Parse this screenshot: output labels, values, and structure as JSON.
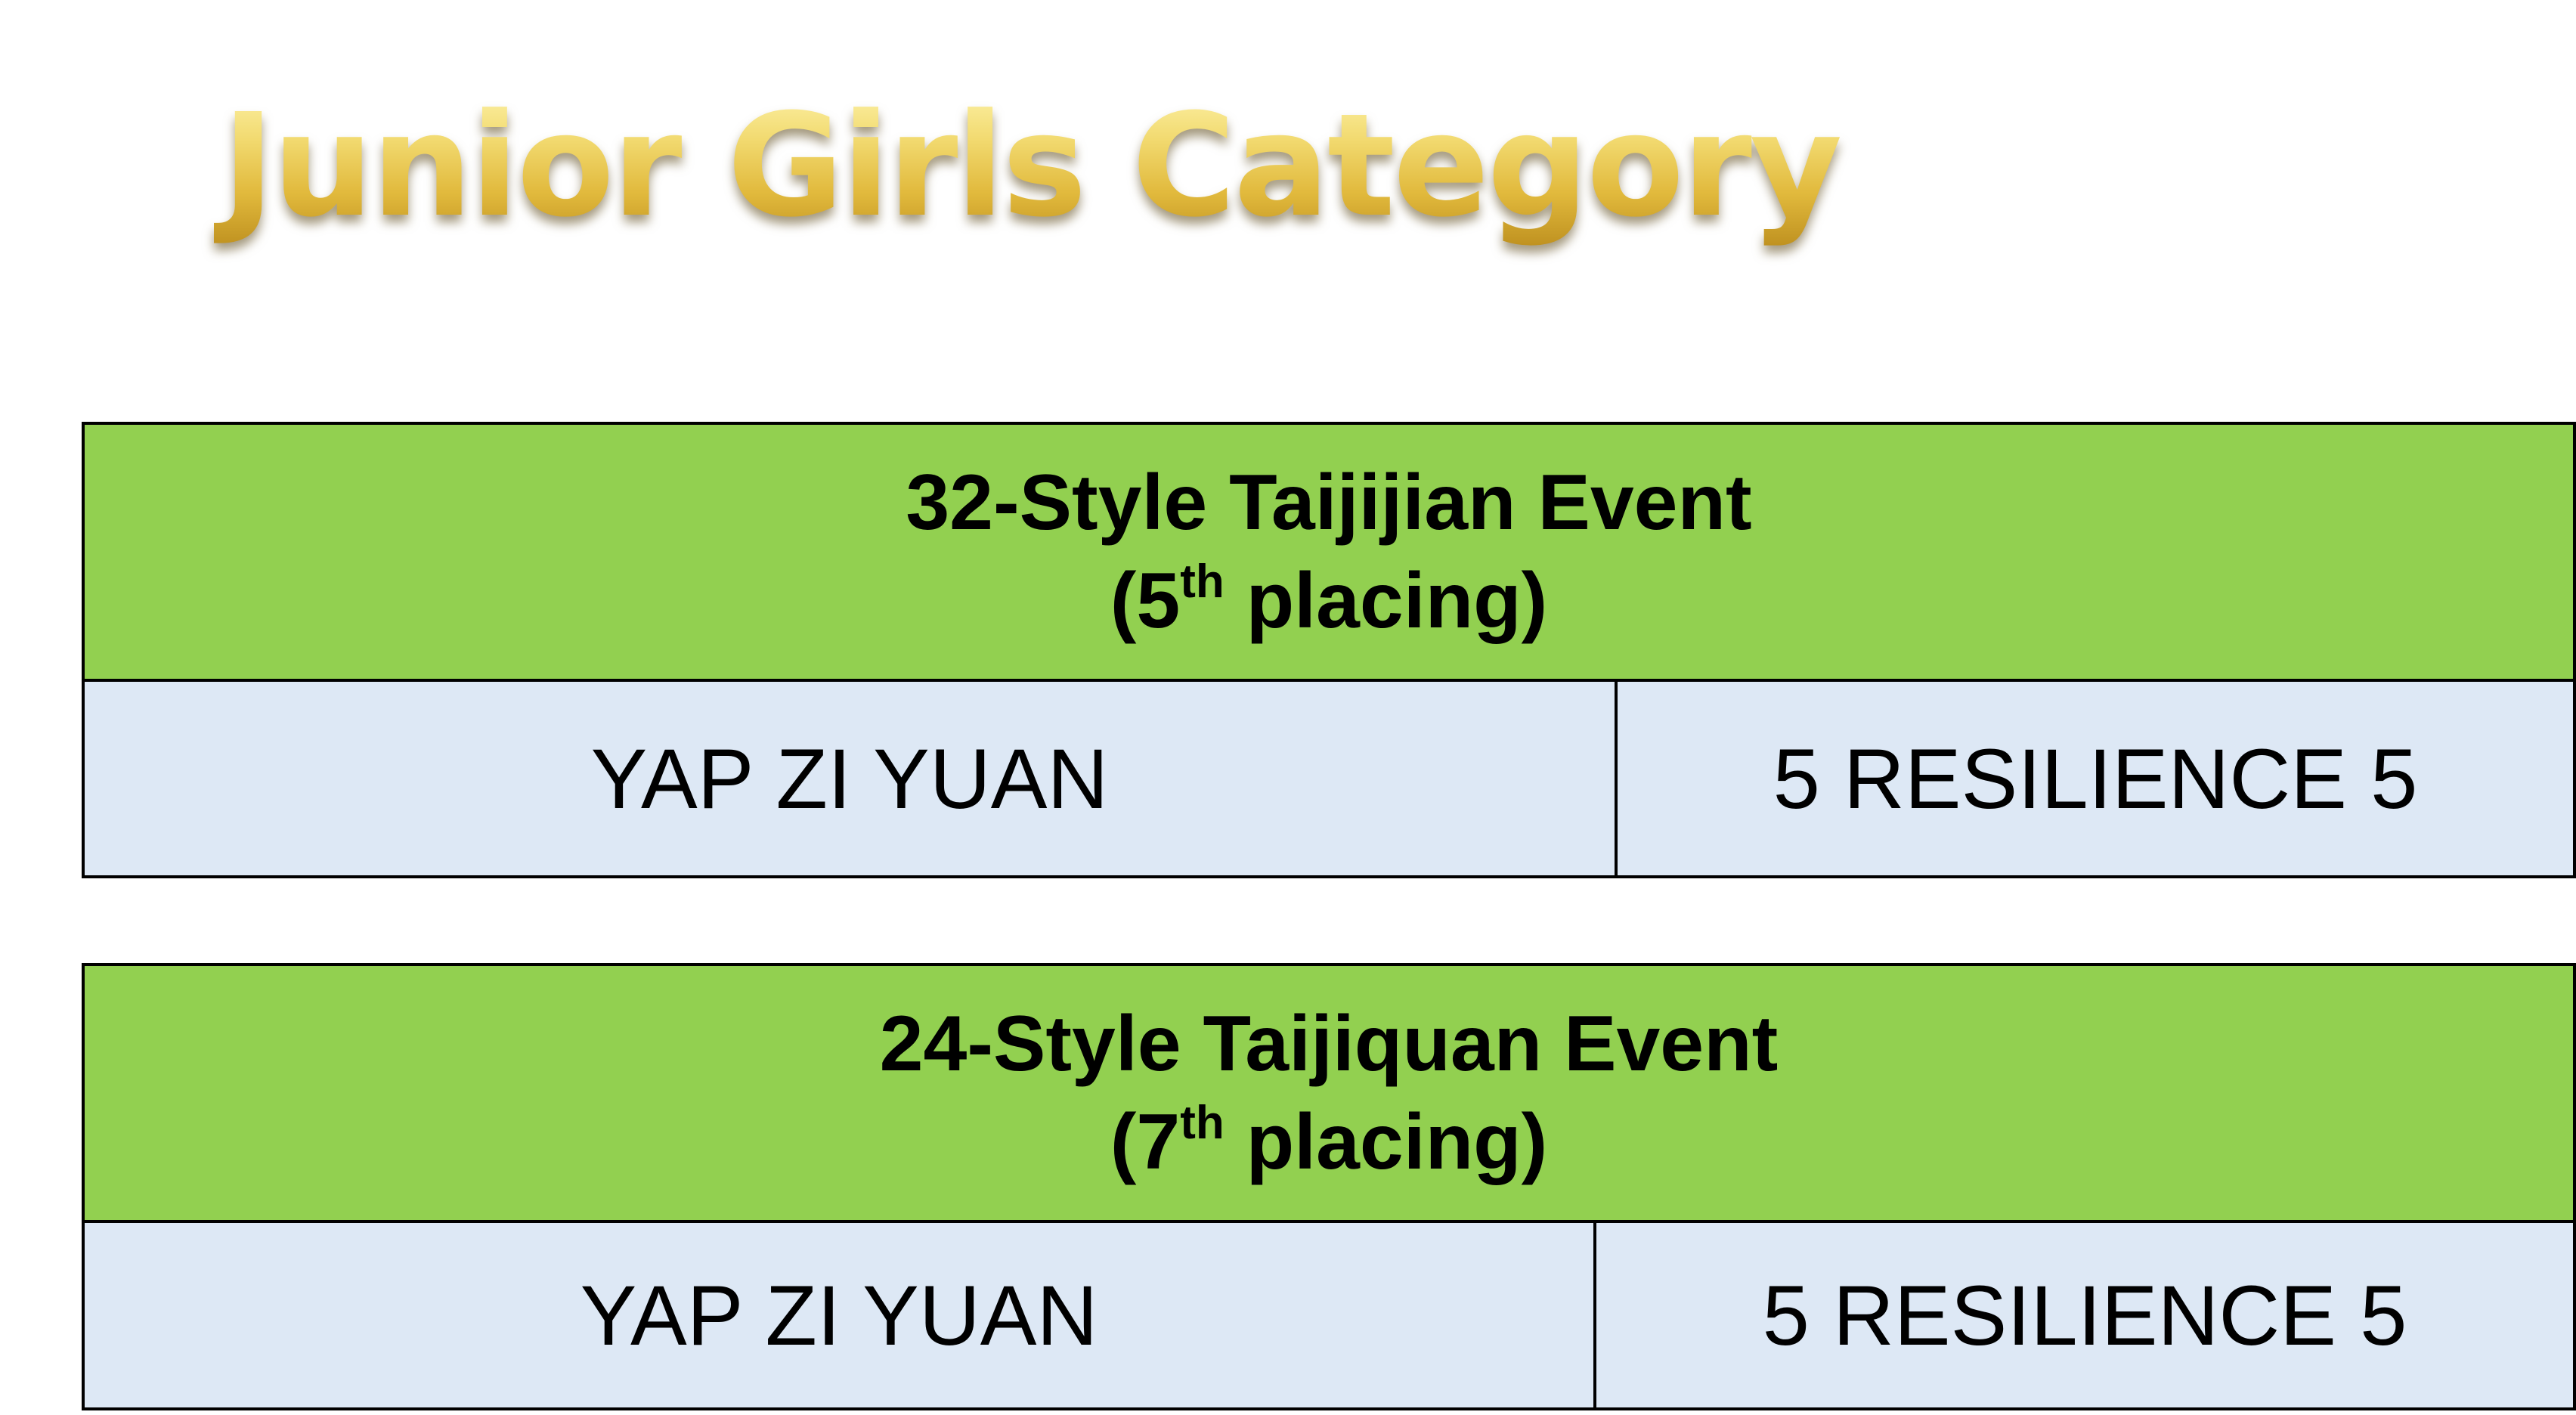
{
  "title": "Junior Girls Category",
  "colors": {
    "header_green": "#92d050",
    "row_blue": "#dde8f5",
    "title_gold": "#e1b93c"
  },
  "events": [
    {
      "event_name": "32-Style Taijijian Event",
      "placing_open": "(5",
      "placing_suffix": "th",
      "placing_close": " placing)",
      "student_name": "YAP ZI YUAN",
      "student_class": "5 RESILIENCE 5"
    },
    {
      "event_name": "24-Style Taijiquan Event",
      "placing_open": "(7",
      "placing_suffix": "th",
      "placing_close": " placing)",
      "student_name": "YAP ZI YUAN",
      "student_class": "5 RESILIENCE 5"
    }
  ]
}
